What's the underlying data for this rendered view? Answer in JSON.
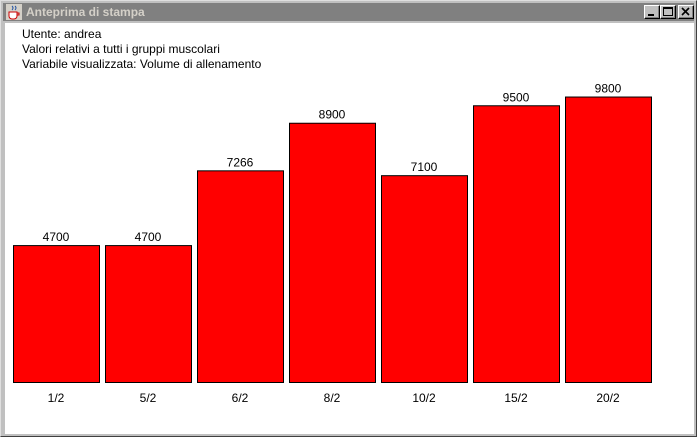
{
  "window": {
    "title": "Anteprima di stampa",
    "icon": "java-cup-icon"
  },
  "info": {
    "user": "Utente: andrea",
    "scope": "Valori relativi a tutti i gruppi muscolari",
    "variable": "Variabile visualizzata: Volume di allenamento"
  },
  "colors": {
    "bar_fill": "#ff0000",
    "bar_stroke": "#000000",
    "titlebar_inactive": "#808080"
  },
  "chart_data": {
    "type": "bar",
    "categories": [
      "1/2",
      "5/2",
      "6/2",
      "8/2",
      "10/2",
      "15/2",
      "20/2"
    ],
    "values": [
      4700,
      4700,
      7266,
      8900,
      7100,
      9500,
      9800
    ],
    "title": "",
    "xlabel": "",
    "ylabel": "",
    "ylim": [
      0,
      10000
    ],
    "grid": false,
    "legend": "none"
  }
}
